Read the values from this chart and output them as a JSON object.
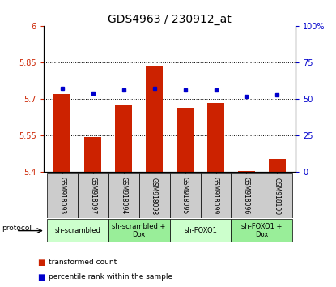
{
  "title": "GDS4963 / 230912_at",
  "samples": [
    "GSM918093",
    "GSM918097",
    "GSM918094",
    "GSM918098",
    "GSM918095",
    "GSM918099",
    "GSM918096",
    "GSM918100"
  ],
  "bar_values": [
    5.72,
    5.545,
    5.675,
    5.835,
    5.665,
    5.685,
    5.405,
    5.455
  ],
  "percentile_values": [
    57,
    54,
    56,
    57,
    56,
    56,
    52,
    53
  ],
  "bar_bottom": 5.4,
  "ylim_left": [
    5.4,
    6.0
  ],
  "ylim_right": [
    0,
    100
  ],
  "yticks_left": [
    5.4,
    5.55,
    5.7,
    5.85,
    6.0
  ],
  "yticks_right": [
    0,
    25,
    50,
    75,
    100
  ],
  "ytick_labels_left": [
    "5.4",
    "5.55",
    "5.7",
    "5.85",
    "6"
  ],
  "ytick_labels_right": [
    "0",
    "25",
    "50",
    "75",
    "100%"
  ],
  "bar_color": "#cc2200",
  "dot_color": "#0000cc",
  "protocols": [
    {
      "label": "sh-scrambled",
      "start": 0,
      "end": 2,
      "color": "#ccffcc"
    },
    {
      "label": "sh-scrambled +\nDox",
      "start": 2,
      "end": 4,
      "color": "#99ee99"
    },
    {
      "label": "sh-FOXO1",
      "start": 4,
      "end": 6,
      "color": "#ccffcc"
    },
    {
      "label": "sh-FOXO1 +\nDox",
      "start": 6,
      "end": 8,
      "color": "#99ee99"
    }
  ],
  "protocol_label": "protocol",
  "legend_bar_label": "transformed count",
  "legend_dot_label": "percentile rank within the sample",
  "bar_width": 0.55,
  "title_fontsize": 10,
  "tick_fontsize": 7,
  "sample_fontsize": 5.5,
  "protocol_fontsize": 6,
  "legend_fontsize": 6.5
}
